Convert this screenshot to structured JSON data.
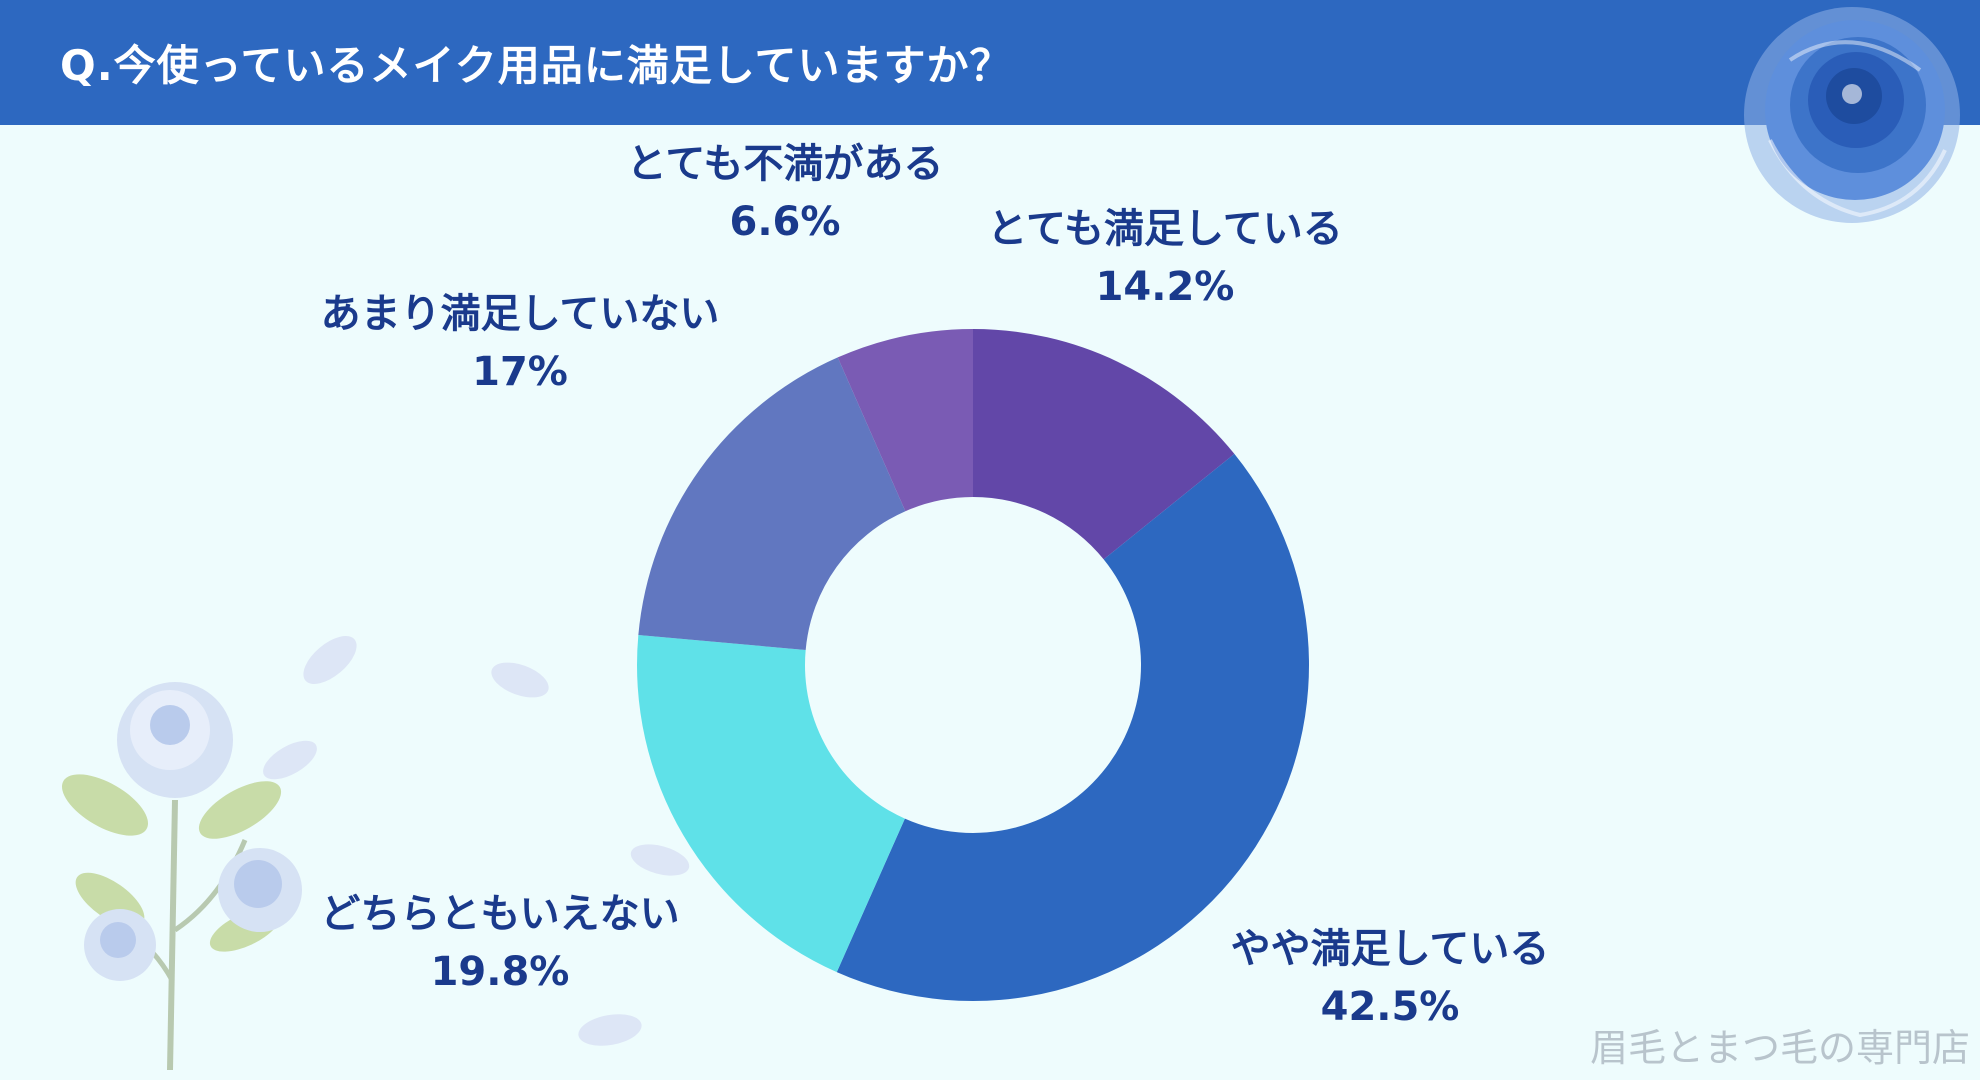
{
  "header": {
    "title": "Q.今使っているメイク用品に満足していますか？"
  },
  "watermark": "眉毛とまつ毛の専門店",
  "chart_data": {
    "type": "pie",
    "title": "Q.今使っているメイク用品に満足していますか？",
    "donut": true,
    "legend": "none",
    "slices": [
      {
        "label": "とても満足している",
        "value": 14.2,
        "value_label": "14.2%",
        "color": "#6247a8"
      },
      {
        "label": "やや満足している",
        "value": 42.5,
        "value_label": "42.5%",
        "color": "#2d68c0"
      },
      {
        "label": "どちらともいえない",
        "value": 19.8,
        "value_label": "19.8%",
        "color": "#5fe1e8"
      },
      {
        "label": "あまり満足していない",
        "value": 17,
        "value_label": "17%",
        "color": "#6177c0"
      },
      {
        "label": "とても不満がある",
        "value": 6.6,
        "value_label": "6.6%",
        "color": "#7a5bb4"
      }
    ]
  }
}
